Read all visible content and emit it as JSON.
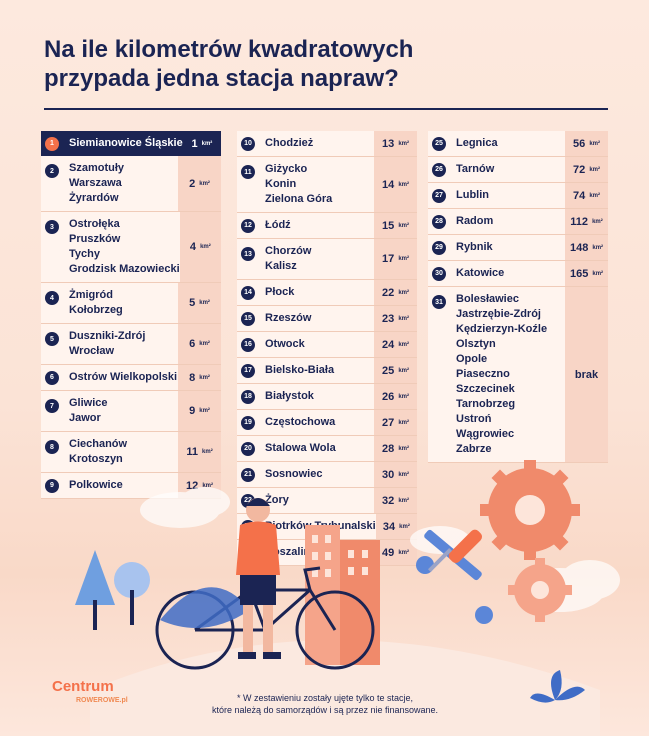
{
  "title": {
    "line1": "Na ile kilometrów kwadratowych",
    "line2": "przypada jedna stacja napraw?"
  },
  "unit": "km²",
  "columns": [
    [
      {
        "n": "1",
        "names": [
          "Siemianowice Śląskie"
        ],
        "value": "1"
      },
      {
        "n": "2",
        "names": [
          "Szamotuły",
          "Warszawa",
          "Żyrardów"
        ],
        "value": "2"
      },
      {
        "n": "3",
        "names": [
          "Ostrołęka",
          "Pruszków",
          "Tychy",
          "Grodzisk Mazowiecki"
        ],
        "value": "4"
      },
      {
        "n": "4",
        "names": [
          "Żmigród",
          "Kołobrzeg"
        ],
        "value": "5"
      },
      {
        "n": "5",
        "names": [
          "Duszniki-Zdrój",
          "Wrocław"
        ],
        "value": "6"
      },
      {
        "n": "6",
        "names": [
          "Ostrów Wielkopolski"
        ],
        "value": "8"
      },
      {
        "n": "7",
        "names": [
          "Gliwice",
          "Jawor"
        ],
        "value": "9"
      },
      {
        "n": "8",
        "names": [
          "Ciechanów",
          "Krotoszyn"
        ],
        "value": "11"
      },
      {
        "n": "9",
        "names": [
          "Polkowice"
        ],
        "value": "12"
      }
    ],
    [
      {
        "n": "10",
        "names": [
          "Chodzież"
        ],
        "value": "13"
      },
      {
        "n": "11",
        "names": [
          "Giżycko",
          "Konin",
          "Zielona Góra"
        ],
        "value": "14"
      },
      {
        "n": "12",
        "names": [
          "Łódź"
        ],
        "value": "15"
      },
      {
        "n": "13",
        "names": [
          "Chorzów",
          "Kalisz"
        ],
        "value": "17"
      },
      {
        "n": "14",
        "names": [
          "Płock"
        ],
        "value": "22"
      },
      {
        "n": "15",
        "names": [
          "Rzeszów"
        ],
        "value": "23"
      },
      {
        "n": "16",
        "names": [
          "Otwock"
        ],
        "value": "24"
      },
      {
        "n": "17",
        "names": [
          "Bielsko-Biała"
        ],
        "value": "25"
      },
      {
        "n": "18",
        "names": [
          "Białystok"
        ],
        "value": "26"
      },
      {
        "n": "19",
        "names": [
          "Częstochowa"
        ],
        "value": "27"
      },
      {
        "n": "20",
        "names": [
          "Stalowa Wola"
        ],
        "value": "28"
      },
      {
        "n": "21",
        "names": [
          "Sosnowiec"
        ],
        "value": "30"
      },
      {
        "n": "22",
        "names": [
          "Żory"
        ],
        "value": "32"
      },
      {
        "n": "23",
        "names": [
          "Piotrków Trybunalski"
        ],
        "value": "34"
      },
      {
        "n": "24",
        "names": [
          "Koszalin"
        ],
        "value": "49"
      }
    ],
    [
      {
        "n": "25",
        "names": [
          "Legnica"
        ],
        "value": "56"
      },
      {
        "n": "26",
        "names": [
          "Tarnów"
        ],
        "value": "72"
      },
      {
        "n": "27",
        "names": [
          "Lublin"
        ],
        "value": "74"
      },
      {
        "n": "28",
        "names": [
          "Radom"
        ],
        "value": "112"
      },
      {
        "n": "29",
        "names": [
          "Rybnik"
        ],
        "value": "148"
      },
      {
        "n": "30",
        "names": [
          "Katowice"
        ],
        "value": "165"
      },
      {
        "n": "31",
        "names": [
          "Bolesławiec",
          "Jastrzębie-Zdrój",
          "Kędzierzyn-Koźle",
          "Olsztyn",
          "Opole",
          "Piaseczno",
          "Szczecinek",
          "Tarnobrzeg",
          "Ustroń",
          "Wągrowiec",
          "Zabrze"
        ],
        "value": "brak",
        "no_unit": true
      }
    ]
  ],
  "logo": {
    "main": "Centrum",
    "sub": "ROWEROWE.pl"
  },
  "footnote": {
    "line1": "* W zestawieniu zostały ujęte tylko te stacje,",
    "line2": "które należą do samorządów i są przez nie finansowane."
  },
  "colors": {
    "navy": "#1b2453",
    "accent": "#f4714a",
    "cell": "#f8d5c6",
    "row": "#fff4ee"
  }
}
